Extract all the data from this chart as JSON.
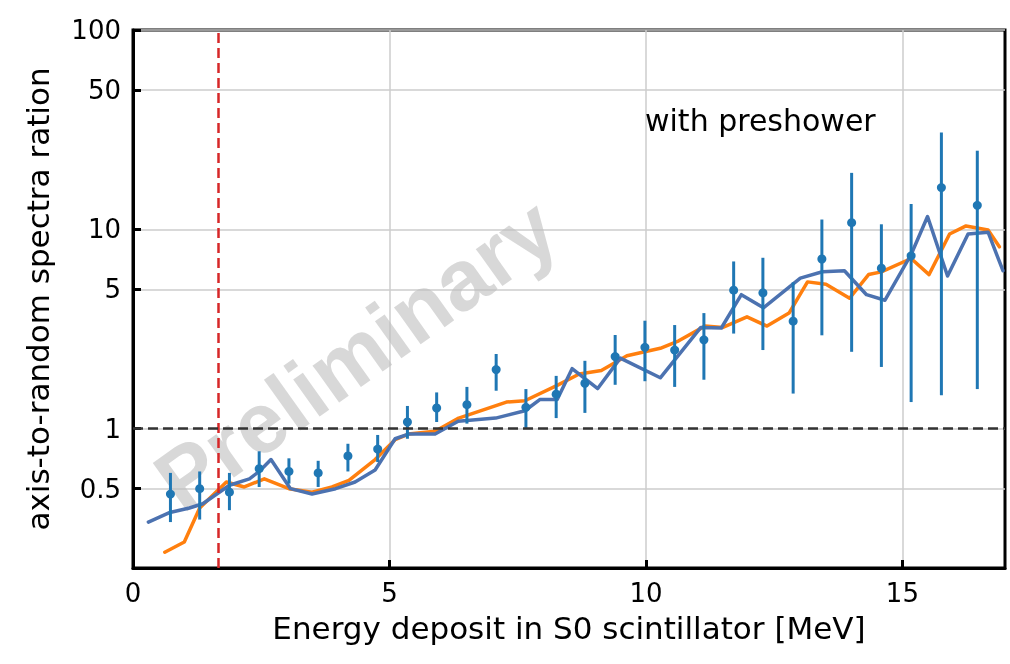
{
  "chart_data": {
    "type": "line",
    "xlabel": "Energy deposit in S0 scintillator [MeV]",
    "ylabel": "axis-to-random spectra ration",
    "annotations": [
      "with preshower",
      "Preliminary"
    ],
    "xlim": [
      0,
      17
    ],
    "xticks": [
      0,
      5,
      10,
      15
    ],
    "ylim": [
      0.2,
      100
    ],
    "yticks": [
      0.5,
      1,
      5,
      10,
      50,
      100
    ],
    "log": "y",
    "grid": true,
    "ref_lines": [
      {
        "axis": "x",
        "value": 1.67,
        "color": "#d62728",
        "line_style": "dashed"
      },
      {
        "axis": "y",
        "value": 1,
        "color": "#333333",
        "line_style": "dashed"
      }
    ],
    "series": [
      {
        "color": "#ff7f0e",
        "marker": "none",
        "line_style": "solid",
        "x": [
          0.62,
          1.0,
          1.3,
          1.82,
          2.17,
          2.56,
          3.04,
          3.49,
          3.88,
          4.21,
          4.72,
          5.11,
          5.37,
          5.89,
          6.35,
          7.28,
          7.64,
          8.27,
          8.7,
          9.13,
          9.63,
          10.28,
          10.64,
          11.15,
          11.5,
          11.97,
          12.36,
          12.79,
          13.15,
          13.51,
          13.97,
          14.34,
          14.59,
          15.17,
          15.52,
          15.92,
          16.24,
          16.67,
          16.89
        ],
        "values": [
          0.24,
          0.27,
          0.4,
          0.54,
          0.51,
          0.56,
          0.5,
          0.48,
          0.51,
          0.55,
          0.7,
          0.88,
          0.94,
          0.97,
          1.13,
          1.36,
          1.38,
          1.65,
          1.88,
          1.96,
          2.32,
          2.53,
          2.76,
          3.27,
          3.22,
          3.64,
          3.27,
          3.8,
          5.45,
          5.3,
          4.51,
          5.93,
          6.12,
          7.14,
          5.93,
          9.48,
          10.4,
          9.93,
          8.17
        ]
      },
      {
        "color": "#4c72b0",
        "marker": "none",
        "line_style": "solid",
        "x": [
          0.3,
          0.72,
          1.1,
          1.36,
          1.88,
          2.27,
          2.46,
          2.69,
          3.07,
          3.49,
          3.95,
          4.33,
          4.72,
          5.11,
          5.37,
          5.89,
          6.34,
          7.07,
          7.64,
          7.93,
          8.27,
          8.56,
          9.06,
          9.5,
          10.28,
          11.07,
          11.47,
          11.86,
          12.29,
          13.01,
          13.44,
          13.87,
          14.3,
          14.66,
          15.17,
          15.49,
          15.88,
          16.28,
          16.67,
          16.96
        ],
        "values": [
          0.34,
          0.38,
          0.4,
          0.42,
          0.52,
          0.56,
          0.61,
          0.7,
          0.5,
          0.47,
          0.5,
          0.54,
          0.62,
          0.89,
          0.94,
          0.94,
          1.09,
          1.13,
          1.23,
          1.4,
          1.4,
          2.0,
          1.59,
          2.26,
          1.8,
          3.22,
          3.2,
          4.7,
          4.04,
          5.69,
          6.13,
          6.2,
          4.7,
          4.41,
          7.48,
          11.6,
          5.83,
          9.48,
          9.67,
          6.2
        ]
      },
      {
        "type": "scatter",
        "color": "#1f77b4",
        "marker": "circle",
        "x": [
          0.73,
          1.3,
          1.88,
          2.46,
          3.04,
          3.61,
          4.19,
          4.77,
          5.35,
          5.92,
          6.51,
          7.08,
          7.66,
          8.25,
          8.81,
          9.4,
          9.98,
          10.56,
          11.13,
          11.71,
          12.28,
          12.87,
          13.43,
          14.01,
          14.59,
          15.17,
          15.76,
          16.46
        ],
        "values": [
          0.47,
          0.5,
          0.48,
          0.63,
          0.61,
          0.6,
          0.73,
          0.79,
          1.08,
          1.27,
          1.32,
          1.98,
          1.28,
          1.49,
          1.69,
          2.3,
          2.56,
          2.48,
          2.79,
          4.95,
          4.8,
          3.46,
          7.1,
          10.8,
          6.38,
          7.36,
          16.2,
          13.2
        ],
        "errors": [
          [
            0.34,
            0.6
          ],
          [
            0.35,
            0.61
          ],
          [
            0.39,
            0.6
          ],
          [
            0.51,
            0.77
          ],
          [
            0.53,
            0.71
          ],
          [
            0.51,
            0.69
          ],
          [
            0.61,
            0.84
          ],
          [
            0.68,
            0.93
          ],
          [
            0.89,
            1.3
          ],
          [
            1.08,
            1.52
          ],
          [
            1.06,
            1.62
          ],
          [
            1.55,
            2.37
          ],
          [
            1.01,
            1.58
          ],
          [
            1.13,
            1.84
          ],
          [
            1.2,
            2.19
          ],
          [
            1.66,
            2.95
          ],
          [
            1.73,
            3.48
          ],
          [
            1.62,
            3.31
          ],
          [
            1.76,
            3.8
          ],
          [
            3.0,
            6.9
          ],
          [
            2.48,
            7.2
          ],
          [
            1.5,
            5.42
          ],
          [
            2.94,
            11.2
          ],
          [
            2.43,
            19.2
          ],
          [
            2.04,
            10.6
          ],
          [
            1.36,
            13.4
          ],
          [
            1.47,
            30.6
          ],
          [
            1.58,
            24.8
          ]
        ]
      }
    ]
  }
}
